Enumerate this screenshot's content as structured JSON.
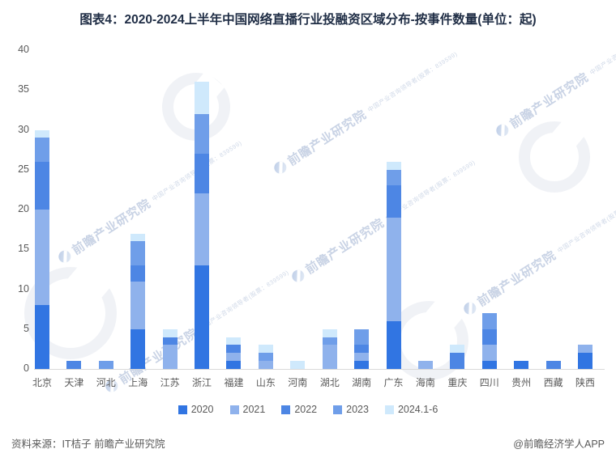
{
  "title": "图表4：2020-2024上半年中国网络直播行业投融资区域分布-按事件数量(单位：起)",
  "watermark": {
    "text": "前瞻产业研究院",
    "subtext": "中国产业咨询领导者(股票：839599)"
  },
  "footer": {
    "source": "资料来源：IT桔子 前瞻产业研究院",
    "credit": "@前瞻经济学人APP"
  },
  "chart_data": {
    "type": "bar",
    "stacked": true,
    "title": "图表4：2020-2024上半年中国网络直播行业投融资区域分布-按事件数量(单位：起)",
    "unit": "起",
    "categories": [
      "北京",
      "天津",
      "河北",
      "上海",
      "江苏",
      "浙江",
      "福建",
      "山东",
      "河南",
      "湖北",
      "湖南",
      "广东",
      "海南",
      "重庆",
      "四川",
      "贵州",
      "西藏",
      "陕西"
    ],
    "series": [
      {
        "name": "2020",
        "color": "#3175E2",
        "values": [
          8,
          0,
          0,
          5,
          0,
          13,
          1,
          0,
          0,
          0,
          1,
          6,
          0,
          0,
          1,
          1,
          0,
          2
        ]
      },
      {
        "name": "2021",
        "color": "#8FB2EC",
        "values": [
          12,
          0,
          0,
          6,
          3,
          9,
          1,
          1,
          0,
          3,
          1,
          13,
          1,
          0,
          2,
          0,
          0,
          1
        ]
      },
      {
        "name": "2022",
        "color": "#4D86E4",
        "values": [
          6,
          1,
          0,
          2,
          1,
          5,
          1,
          0,
          0,
          0,
          1,
          4,
          0,
          2,
          2,
          0,
          1,
          0
        ]
      },
      {
        "name": "2023",
        "color": "#6F9EE9",
        "values": [
          3,
          0,
          1,
          3,
          0,
          5,
          0,
          1,
          0,
          1,
          2,
          2,
          0,
          0,
          2,
          0,
          0,
          0
        ]
      },
      {
        "name": "2024.1-6",
        "color": "#CFE9FC",
        "values": [
          1,
          0,
          0,
          1,
          1,
          4,
          1,
          1,
          1,
          1,
          0,
          1,
          0,
          1,
          0,
          0,
          0,
          0
        ]
      }
    ],
    "totals": [
      30,
      1,
      1,
      17,
      5,
      36,
      4,
      3,
      1,
      5,
      5,
      26,
      1,
      3,
      7,
      1,
      1,
      3
    ],
    "xlabel": "",
    "ylabel": "",
    "ylim": [
      0,
      40
    ],
    "ytick_step": 5,
    "grid": false,
    "legend_position": "bottom"
  }
}
